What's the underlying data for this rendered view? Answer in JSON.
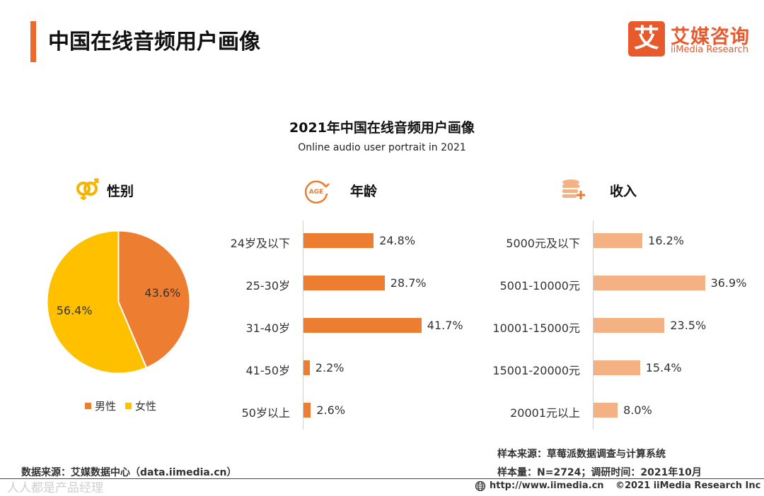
{
  "header": {
    "title": "中国在线音频用户画像",
    "logo_mark": "艾",
    "logo_cn": "艾媒咨询",
    "logo_en": "iiMedia Research"
  },
  "colors": {
    "accent": "#ec6a2c",
    "male": "#ed7d31",
    "female": "#ffc000",
    "age_bar": "#ed7d31",
    "income_bar": "#f4b183"
  },
  "chart_data": [
    {
      "type": "pie",
      "title": "2021年中国在线音频用户画像",
      "subtitle": "Online audio user portrait in 2021",
      "section": "性别",
      "slices": [
        {
          "name": "男性",
          "value": 43.6,
          "label": "43.6%"
        },
        {
          "name": "女性",
          "value": 56.4,
          "label": "56.4%"
        }
      ],
      "legend": [
        "男性",
        "女性"
      ],
      "legend_position": "bottom"
    },
    {
      "type": "bar",
      "orientation": "horizontal",
      "section": "年龄",
      "categories": [
        "24岁及以下",
        "25-30岁",
        "31-40岁",
        "41-50岁",
        "50岁以上"
      ],
      "values": [
        24.8,
        28.7,
        41.7,
        2.2,
        2.6
      ],
      "value_labels": [
        "24.8%",
        "28.7%",
        "41.7%",
        "2.2%",
        "2.6%"
      ],
      "xlim": [
        0,
        45
      ]
    },
    {
      "type": "bar",
      "orientation": "horizontal",
      "section": "收入",
      "categories": [
        "5000元及以下",
        "5001-10000元",
        "10001-15000元",
        "15001-20000元",
        "20001元以上"
      ],
      "values": [
        16.2,
        36.9,
        23.5,
        15.4,
        8.0
      ],
      "value_labels": [
        "16.2%",
        "36.9%",
        "23.5%",
        "15.4%",
        "8.0%"
      ],
      "xlim": [
        0,
        40
      ]
    }
  ],
  "icons": {
    "gender": "gender-icon",
    "age": "age-icon",
    "income": "coins-plus-icon",
    "age_icon_text": "AGE"
  },
  "notes": {
    "sample_source": "样本来源：草莓派数据调查与计算系统",
    "sample_size": "样本量：N=2724；调研时间：2021年10月",
    "data_source": "数据来源：艾媒数据中心（data.iimedia.cn）"
  },
  "footer": {
    "url": "http://www.iimedia.cn",
    "copyright": "©2021  iiMedia Research  Inc",
    "watermark": "人人都是产品经理"
  }
}
